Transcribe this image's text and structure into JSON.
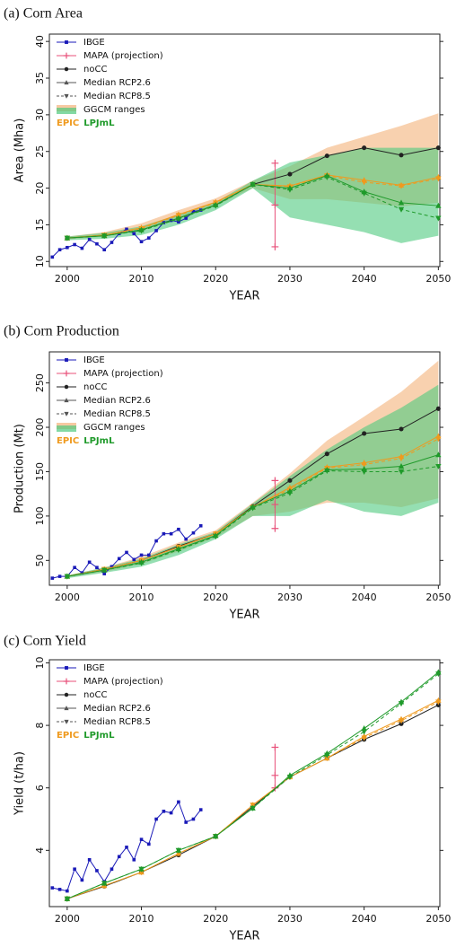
{
  "chart_data": [
    {
      "type": "line",
      "title": "(a) Corn Area",
      "xlabel": "YEAR",
      "ylabel": "Area (Mha)",
      "xlim": [
        1997.6,
        2050.2
      ],
      "xticks": [
        2000,
        2010,
        2020,
        2030,
        2040,
        2050
      ],
      "ylim": [
        9.3,
        41
      ],
      "yticks": [
        10,
        15,
        20,
        25,
        30,
        35,
        40
      ],
      "x": [
        2000,
        2005,
        2010,
        2015,
        2020,
        2025,
        2030,
        2035,
        2040,
        2045,
        2050
      ],
      "series": [
        {
          "name": "IBGE",
          "color": "#1a1ab8",
          "marker": "square",
          "x": [
            1998,
            1999,
            2000,
            2001,
            2002,
            2003,
            2004,
            2005,
            2006,
            2007,
            2008,
            2009,
            2010,
            2011,
            2012,
            2013,
            2014,
            2015,
            2016,
            2017,
            2018
          ],
          "values": [
            10.6,
            11.6,
            11.9,
            12.3,
            11.8,
            13.0,
            12.4,
            11.6,
            12.6,
            13.8,
            14.4,
            13.8,
            12.7,
            13.2,
            14.2,
            15.3,
            15.6,
            15.4,
            15.9,
            16.8,
            17.0
          ]
        },
        {
          "name": "MAPA (projection)",
          "color": "#e8507a",
          "marker": "plus",
          "x": [
            2028,
            2028,
            2028
          ],
          "values": [
            12.0,
            17.7,
            23.4
          ]
        },
        {
          "name": "noCC",
          "color": "#222222",
          "marker": "circle",
          "values": [
            13.2,
            13.5,
            14.3,
            15.9,
            17.7,
            20.5,
            21.9,
            24.4,
            25.5,
            24.5,
            25.5
          ]
        }
      ],
      "range_label": "GGCM ranges",
      "models": [
        {
          "name": "EPIC",
          "color": "#ef9a1e",
          "range_color": "#f3b27a",
          "range": {
            "low": [
              13.0,
              13.4,
              14.2,
              15.8,
              17.6,
              20.0,
              18.5,
              18.5,
              18.0,
              17.5,
              18.0
            ],
            "high": [
              13.4,
              14.0,
              15.2,
              17.0,
              18.6,
              21.0,
              23.0,
              25.5,
              27.0,
              28.5,
              30.2
            ]
          },
          "series": [
            {
              "name": "Median RCP2.6",
              "marker": "triangle-up",
              "dash": false,
              "values": [
                13.2,
                13.6,
                14.6,
                16.4,
                18.1,
                20.5,
                20.3,
                21.8,
                21.1,
                20.4,
                21.5
              ]
            },
            {
              "name": "Median RCP8.5",
              "marker": "triangle-down",
              "dash": true,
              "values": [
                13.2,
                13.6,
                14.5,
                16.3,
                18.0,
                20.5,
                20.2,
                21.7,
                20.8,
                20.3,
                21.3
              ]
            }
          ]
        },
        {
          "name": "LPJmL",
          "color": "#1f9a2a",
          "range_color": "#4fc97e",
          "range": {
            "low": [
              12.9,
              13.1,
              13.6,
              15.0,
              17.0,
              20.0,
              16.0,
              15.0,
              14.0,
              12.5,
              13.5
            ],
            "high": [
              13.4,
              13.9,
              14.8,
              16.4,
              18.1,
              21.0,
              23.5,
              24.5,
              25.5,
              25.5,
              25.5
            ]
          },
          "series": [
            {
              "name": "Median RCP2.6",
              "marker": "triangle-up",
              "dash": false,
              "values": [
                13.2,
                13.5,
                14.3,
                15.9,
                17.7,
                20.5,
                20.0,
                21.7,
                19.5,
                18.0,
                17.6
              ]
            },
            {
              "name": "Median RCP8.5",
              "marker": "triangle-down",
              "dash": true,
              "values": [
                13.2,
                13.5,
                14.2,
                15.8,
                17.6,
                20.5,
                19.8,
                21.5,
                19.3,
                17.1,
                15.9
              ]
            }
          ]
        }
      ]
    },
    {
      "type": "line",
      "title": "(b) Corn Production",
      "xlabel": "YEAR",
      "ylabel": "Production (Mt)",
      "xlim": [
        1997.6,
        2050.2
      ],
      "xticks": [
        2000,
        2010,
        2020,
        2030,
        2040,
        2050
      ],
      "ylim": [
        22,
        285
      ],
      "yticks": [
        50,
        100,
        150,
        200,
        250
      ],
      "x": [
        2000,
        2005,
        2010,
        2015,
        2020,
        2025,
        2030,
        2035,
        2040,
        2045,
        2050
      ],
      "series": [
        {
          "name": "IBGE",
          "color": "#1a1ab8",
          "marker": "square",
          "x": [
            1998,
            1999,
            2000,
            2001,
            2002,
            2003,
            2004,
            2005,
            2006,
            2007,
            2008,
            2009,
            2010,
            2011,
            2012,
            2013,
            2014,
            2015,
            2016,
            2017,
            2018
          ],
          "values": [
            30,
            32,
            32,
            42,
            36,
            48,
            42,
            35,
            43,
            52,
            59,
            51,
            56,
            56,
            72,
            80,
            80,
            85,
            74,
            81,
            89
          ]
        },
        {
          "name": "MAPA (projection)",
          "color": "#e8507a",
          "marker": "plus",
          "x": [
            2028,
            2028,
            2028
          ],
          "values": [
            86,
            113,
            140
          ]
        },
        {
          "name": "noCC",
          "color": "#222222",
          "marker": "circle",
          "values": [
            32,
            40,
            50,
            66,
            80,
            111,
            140,
            170,
            193,
            198,
            221
          ]
        }
      ],
      "range_label": "GGCM ranges",
      "models": [
        {
          "name": "EPIC",
          "color": "#ef9a1e",
          "range_color": "#f3b27a",
          "range": {
            "low": [
              31,
              37,
              46,
              60,
              76,
              100,
              105,
              115,
              115,
              110,
              120
            ],
            "high": [
              33,
              42,
              54,
              70,
              84,
              115,
              148,
              185,
              212,
              240,
              275
            ]
          },
          "series": [
            {
              "name": "Median RCP2.6",
              "marker": "triangle-up",
              "dash": false,
              "values": [
                32,
                40,
                50,
                65,
                80,
                110,
                132,
                155,
                160,
                167,
                190
              ]
            },
            {
              "name": "Median RCP8.5",
              "marker": "triangle-down",
              "dash": true,
              "values": [
                32,
                40,
                50,
                65,
                80,
                110,
                130,
                154,
                158,
                165,
                187
              ]
            }
          ]
        },
        {
          "name": "LPJmL",
          "color": "#1f9a2a",
          "range_color": "#4fc97e",
          "range": {
            "low": [
              30,
              36,
              43,
              56,
              74,
              100,
              100,
              118,
              105,
              100,
              115
            ],
            "high": [
              33,
              42,
              52,
              68,
              82,
              114,
              145,
              175,
              200,
              222,
              248
            ]
          },
          "series": [
            {
              "name": "Median RCP2.6",
              "marker": "triangle-up",
              "dash": false,
              "values": [
                32,
                39,
                48,
                63,
                78,
                110,
                128,
                152,
                153,
                156,
                169
              ]
            },
            {
              "name": "Median RCP8.5",
              "marker": "triangle-down",
              "dash": true,
              "values": [
                32,
                39,
                47,
                62,
                77,
                109,
                126,
                151,
                150,
                150,
                156
              ]
            }
          ]
        }
      ]
    },
    {
      "type": "line",
      "title": "(c) Corn Yield",
      "xlabel": "YEAR",
      "ylabel": "Yield (t/ha)",
      "xlim": [
        1997.6,
        2050.2
      ],
      "xticks": [
        2000,
        2010,
        2020,
        2030,
        2040,
        2050
      ],
      "ylim": [
        2.2,
        10.1
      ],
      "yticks": [
        4,
        6,
        8,
        10
      ],
      "x": [
        2000,
        2005,
        2010,
        2015,
        2020,
        2025,
        2030,
        2035,
        2040,
        2045,
        2050
      ],
      "series": [
        {
          "name": "IBGE",
          "color": "#1a1ab8",
          "marker": "square",
          "x": [
            1998,
            1999,
            2000,
            2001,
            2002,
            2003,
            2004,
            2005,
            2006,
            2007,
            2008,
            2009,
            2010,
            2011,
            2012,
            2013,
            2014,
            2015,
            2016,
            2017,
            2018
          ],
          "values": [
            2.8,
            2.75,
            2.7,
            3.4,
            3.05,
            3.7,
            3.35,
            3.0,
            3.4,
            3.8,
            4.1,
            3.7,
            4.35,
            4.2,
            5.0,
            5.25,
            5.2,
            5.55,
            4.9,
            5.0,
            5.3
          ]
        },
        {
          "name": "MAPA (projection)",
          "color": "#e8507a",
          "marker": "plus",
          "x": [
            2028,
            2028,
            2028
          ],
          "values": [
            6.0,
            6.4,
            7.3
          ]
        },
        {
          "name": "noCC",
          "color": "#222222",
          "marker": "circle",
          "values": [
            2.45,
            2.85,
            3.3,
            3.85,
            4.45,
            5.4,
            6.35,
            6.95,
            7.55,
            8.05,
            8.65
          ]
        }
      ],
      "models": [
        {
          "name": "EPIC",
          "color": "#ef9a1e",
          "series": [
            {
              "name": "Median RCP2.6",
              "marker": "triangle-up",
              "dash": false,
              "values": [
                2.45,
                2.87,
                3.3,
                3.9,
                4.45,
                5.45,
                6.35,
                6.95,
                7.65,
                8.2,
                8.8
              ]
            },
            {
              "name": "Median RCP8.5",
              "marker": "triangle-down",
              "dash": true,
              "values": [
                2.45,
                2.87,
                3.3,
                3.9,
                4.45,
                5.45,
                6.35,
                6.95,
                7.6,
                8.15,
                8.75
              ]
            }
          ]
        },
        {
          "name": "LPJmL",
          "color": "#1f9a2a",
          "series": [
            {
              "name": "Median RCP2.6",
              "marker": "triangle-up",
              "dash": false,
              "values": [
                2.45,
                2.95,
                3.4,
                4.0,
                4.45,
                5.35,
                6.4,
                7.1,
                7.9,
                8.75,
                9.7
              ]
            },
            {
              "name": "Median RCP8.5",
              "marker": "triangle-down",
              "dash": true,
              "values": [
                2.45,
                2.95,
                3.4,
                4.0,
                4.45,
                5.35,
                6.35,
                7.05,
                7.8,
                8.7,
                9.65
              ]
            }
          ]
        }
      ]
    }
  ]
}
